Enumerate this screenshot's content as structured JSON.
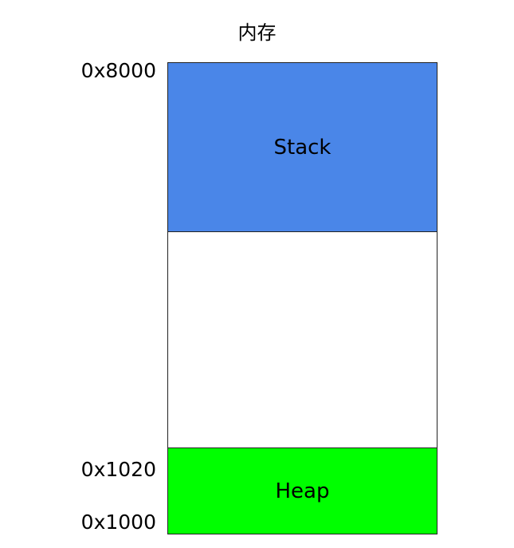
{
  "title": "内存",
  "segments": {
    "stack": {
      "label": "Stack",
      "color": "#4a86e8"
    },
    "free": {
      "label": "",
      "color": "#ffffff"
    },
    "heap": {
      "label": "Heap",
      "color": "#00ff00"
    }
  },
  "addresses": {
    "top": "0x8000",
    "heap_top": "0x1020",
    "heap_bottom": "0x1000"
  }
}
